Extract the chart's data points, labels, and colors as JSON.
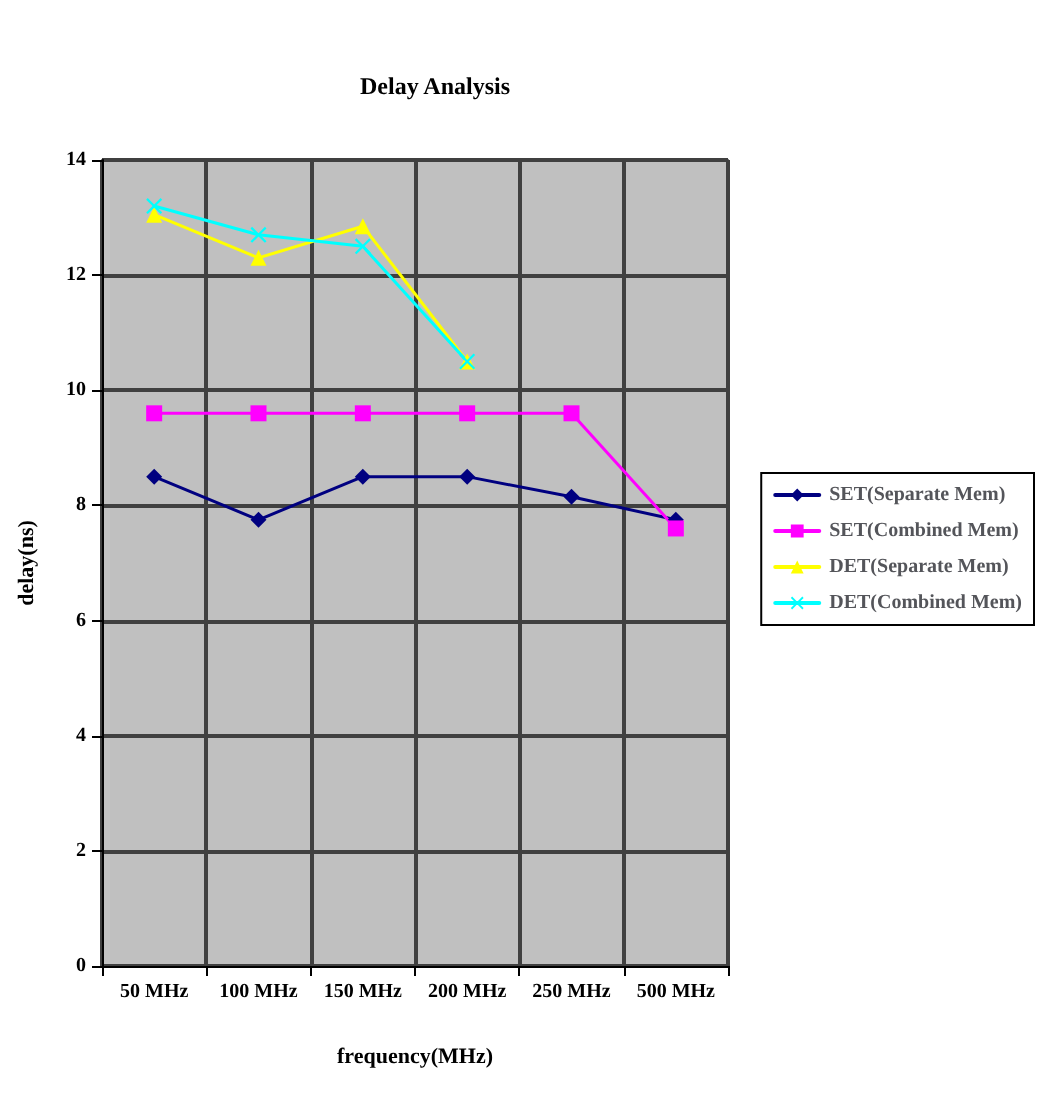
{
  "chart_data": {
    "type": "line",
    "title": "Delay Analysis",
    "xlabel": "frequency(MHz)",
    "ylabel": "delay(ns)",
    "categories": [
      "50 MHz",
      "100 MHz",
      "150 MHz",
      "200 MHz",
      "250 MHz",
      "500 MHz"
    ],
    "series": [
      {
        "name": "SET(Separate Mem)",
        "color": "#000080",
        "marker": "diamond",
        "values": [
          8.5,
          7.75,
          8.5,
          8.5,
          8.15,
          7.75
        ]
      },
      {
        "name": "SET(Combined Mem)",
        "color": "#ff00ff",
        "marker": "square",
        "values": [
          9.6,
          9.6,
          9.6,
          9.6,
          9.6,
          7.6
        ]
      },
      {
        "name": "DET(Separate Mem)",
        "color": "#ffff00",
        "marker": "triangle",
        "values": [
          13.05,
          12.3,
          12.85,
          10.5,
          null,
          null
        ]
      },
      {
        "name": "DET(Combined Mem)",
        "color": "#00ffff",
        "marker": "cross",
        "values": [
          13.2,
          12.7,
          12.5,
          10.5,
          null,
          null
        ]
      }
    ],
    "ylim": [
      0,
      14
    ],
    "yticks": [
      0,
      2,
      4,
      6,
      8,
      10,
      12,
      14
    ],
    "grid": true,
    "legend": "right"
  }
}
